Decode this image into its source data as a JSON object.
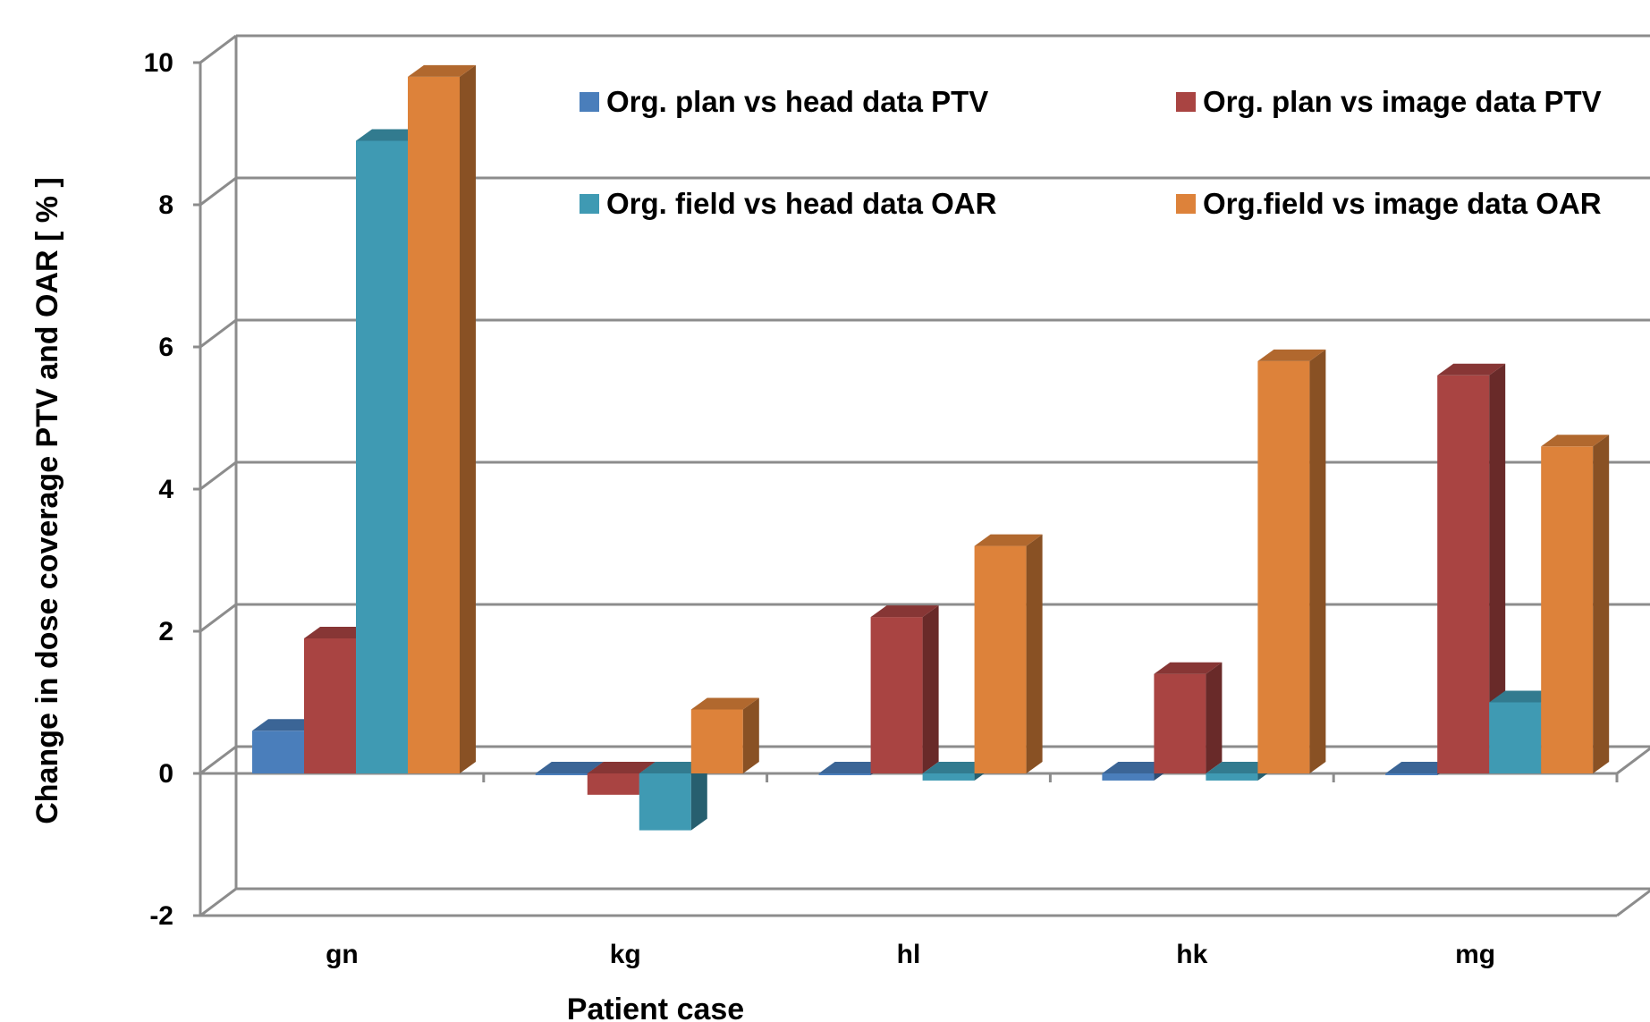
{
  "chart_data": {
    "type": "bar",
    "subtype": "3d-clustered-column",
    "title": "",
    "xlabel": "Patient case",
    "ylabel": "Change in dose coverage PTV and OAR  [ % ]",
    "ylim": [
      -2,
      10
    ],
    "yticks": [
      -2,
      0,
      2,
      4,
      6,
      8,
      10
    ],
    "grid": true,
    "legend_position": "top-right",
    "categories": [
      "gn",
      "kg",
      "hl",
      "hk",
      "mg"
    ],
    "series": [
      {
        "name": "Org. plan vs head data PTV",
        "color": "#4A7EBB",
        "values": [
          0.6,
          0.0,
          0.0,
          -0.1,
          0.0
        ]
      },
      {
        "name": "Org. plan vs image data PTV",
        "color": "#A94442",
        "values": [
          1.9,
          -0.3,
          2.2,
          1.4,
          5.6
        ]
      },
      {
        "name": "Org. field vs head data OAR",
        "color": "#3F9AB3",
        "values": [
          8.9,
          -0.8,
          -0.1,
          -0.1,
          1.0
        ]
      },
      {
        "name": "Org.field vs image data OAR",
        "color": "#DD823A",
        "values": [
          9.8,
          0.9,
          3.2,
          5.8,
          4.6
        ]
      }
    ]
  }
}
